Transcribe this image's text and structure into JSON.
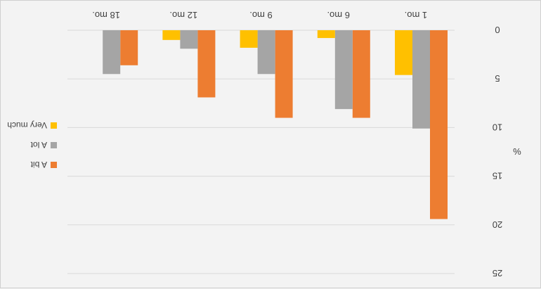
{
  "chart_data": {
    "type": "bar",
    "orientation": "flipped-upside-down",
    "categories": [
      "1 mo.",
      "6 mo.",
      "9 mo.",
      "12 mo.",
      "18 mo."
    ],
    "series": [
      {
        "name": "A bit",
        "color": "#ed7d31",
        "values": [
          19.4,
          9.0,
          9.0,
          6.9,
          3.6
        ]
      },
      {
        "name": "A lot",
        "color": "#a5a5a5",
        "values": [
          10.1,
          8.1,
          4.5,
          1.9,
          4.5
        ]
      },
      {
        "name": "Very much",
        "color": "#ffc000",
        "values": [
          4.6,
          0.8,
          1.8,
          1.0,
          null
        ]
      }
    ],
    "ylabel": "%",
    "ylim": [
      0,
      25
    ],
    "yticks": [
      "0",
      "5",
      "10",
      "15",
      "20",
      "25"
    ],
    "grid": true,
    "legend_position": "right"
  }
}
